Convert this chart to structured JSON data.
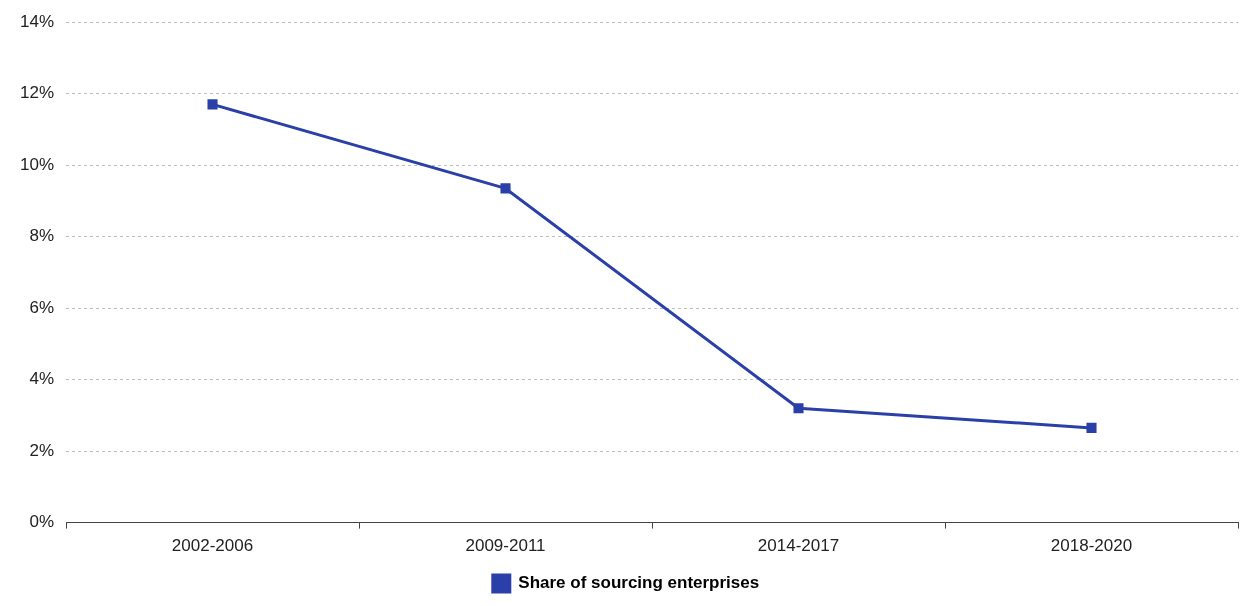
{
  "chart_data": {
    "type": "line",
    "categories": [
      "2002-2006",
      "2009-2011",
      "2014-2017",
      "2018-2020"
    ],
    "series": [
      {
        "name": "Share of sourcing enterprises",
        "color": "#2b3fa8",
        "values": [
          11.7,
          9.35,
          3.2,
          2.65
        ]
      }
    ],
    "ylim": [
      0,
      14
    ],
    "yticks": [
      {
        "value": 0,
        "label": "0%"
      },
      {
        "value": 2,
        "label": "2%"
      },
      {
        "value": 4,
        "label": "4%"
      },
      {
        "value": 6,
        "label": "6%"
      },
      {
        "value": 8,
        "label": "8%"
      },
      {
        "value": 10,
        "label": "10%"
      },
      {
        "value": 12,
        "label": "12%"
      },
      {
        "value": 14,
        "label": "14%"
      }
    ],
    "grid": "y",
    "legend": "bottom",
    "marker": "square",
    "line_style": "solid"
  }
}
